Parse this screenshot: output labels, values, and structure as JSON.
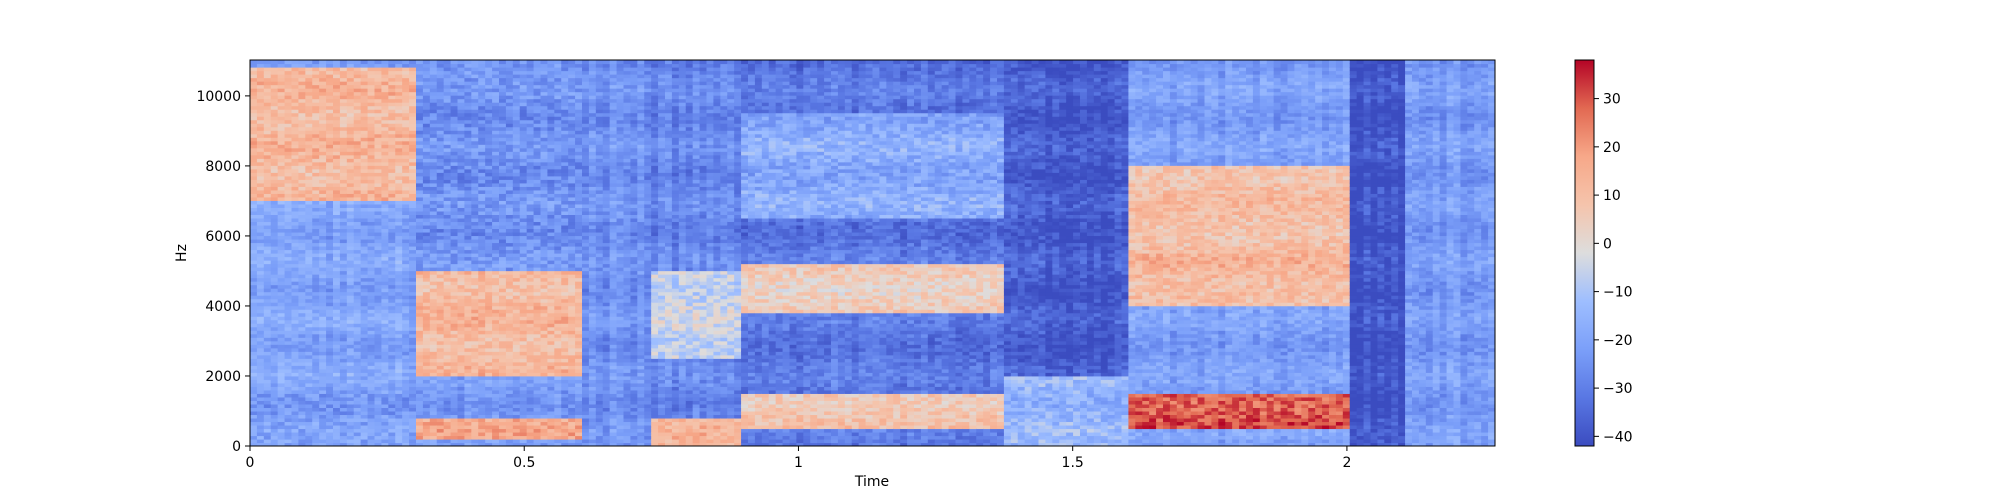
{
  "chart_data": {
    "type": "heatmap",
    "subtype": "spectrogram",
    "colormap": "coolwarm",
    "xlabel": "Time",
    "ylabel": "Hz",
    "xlim": [
      0,
      2.27
    ],
    "ylim": [
      0,
      11025
    ],
    "xticks": [
      0,
      0.5,
      1,
      1.5,
      2
    ],
    "xtick_labels": [
      "0",
      "0.5",
      "1",
      "1.5",
      "2"
    ],
    "yticks": [
      0,
      2000,
      4000,
      6000,
      8000,
      10000
    ],
    "ytick_labels": [
      "0",
      "2000",
      "4000",
      "6000",
      "8000",
      "10000"
    ],
    "colorbar": {
      "range": [
        -42,
        38
      ],
      "ticks": [
        30,
        20,
        10,
        0,
        -10,
        -20,
        -30,
        -40
      ],
      "tick_labels": [
        "30",
        "20",
        "10",
        "0",
        "−10",
        "−20",
        "−30",
        "−40"
      ]
    },
    "time_segments": [
      {
        "t": [
          0.0,
          0.3
        ],
        "level_db": -20,
        "regions": [
          {
            "f": [
              7000,
              10800
            ],
            "db": 12
          },
          {
            "f": [
              0,
              1500
            ],
            "db": -22
          }
        ]
      },
      {
        "t": [
          0.3,
          0.6
        ],
        "level_db": -22,
        "regions": [
          {
            "f": [
              2000,
              5000
            ],
            "db": 12
          },
          {
            "f": [
              200,
              800
            ],
            "db": 15
          },
          {
            "f": [
              5000,
              10500
            ],
            "db": -25
          }
        ]
      },
      {
        "t": [
          0.6,
          0.73
        ],
        "level_db": -25,
        "regions": []
      },
      {
        "t": [
          0.73,
          0.9
        ],
        "level_db": -28,
        "regions": [
          {
            "f": [
              0,
              800
            ],
            "db": 12
          },
          {
            "f": [
              2500,
              5000
            ],
            "db": -5
          }
        ]
      },
      {
        "t": [
          0.9,
          1.37
        ],
        "level_db": -32,
        "regions": [
          {
            "f": [
              3800,
              5200
            ],
            "db": 5
          },
          {
            "f": [
              500,
              1500
            ],
            "db": 8
          },
          {
            "f": [
              6500,
              9500
            ],
            "db": -18
          }
        ]
      },
      {
        "t": [
          1.37,
          1.6
        ],
        "level_db": -38,
        "regions": [
          {
            "f": [
              0,
              2000
            ],
            "db": -15
          }
        ]
      },
      {
        "t": [
          1.6,
          2.0
        ],
        "level_db": -22,
        "regions": [
          {
            "f": [
              4000,
              8000
            ],
            "db": 10
          },
          {
            "f": [
              500,
              1500
            ],
            "db": 30
          },
          {
            "f": [
              4200,
              5500
            ],
            "db": 12
          }
        ]
      },
      {
        "t": [
          2.0,
          2.1
        ],
        "level_db": -40,
        "regions": []
      },
      {
        "t": [
          2.1,
          2.27
        ],
        "level_db": -22,
        "regions": []
      }
    ]
  }
}
